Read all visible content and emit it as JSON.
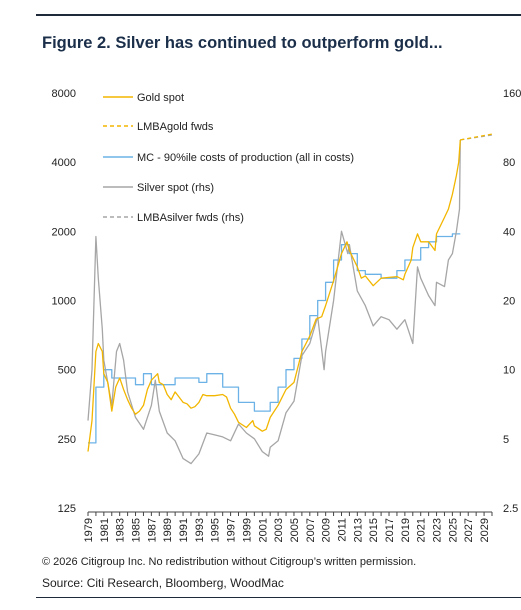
{
  "title": "Figure 2. Silver has continued to outperform gold...",
  "footer": {
    "copyright": "© 2026 Citigroup Inc. No redistribution without Citigroup’s written permission.",
    "source": "Source: Citi Research, Bloomberg, WoodMac"
  },
  "colors": {
    "gold": "#f2b600",
    "mc": "#6cb2e6",
    "silver": "#a6a6a6",
    "title": "#1b2f4a"
  },
  "chart_data": {
    "type": "line",
    "y_left": {
      "scale": "log",
      "ylim": [
        125,
        8000
      ],
      "ticks": [
        125,
        250,
        500,
        1000,
        2000,
        4000,
        8000
      ],
      "tick_labels": [
        "125",
        "250",
        "500",
        "1000",
        "2000",
        "4000",
        "8000"
      ]
    },
    "y_right": {
      "scale": "log",
      "ylim": [
        2.5,
        160
      ],
      "ticks": [
        2.5,
        5,
        10,
        20,
        40,
        80,
        160
      ],
      "tick_labels": [
        "2.5",
        "5",
        "10",
        "20",
        "40",
        "80",
        "160"
      ]
    },
    "x_ticks": [
      "1979",
      "1981",
      "1983",
      "1985",
      "1987",
      "1989",
      "1991",
      "1993",
      "1995",
      "1997",
      "1999",
      "2001",
      "2003",
      "2005",
      "2007",
      "2009",
      "2011",
      "2013",
      "2015",
      "2017",
      "2019",
      "2021",
      "2023",
      "2025",
      "2027",
      "2029"
    ],
    "xlim": [
      1979,
      2030
    ],
    "legend": [
      "Gold spot",
      "LMBAgold fwds",
      "MC - 90%ile costs of production (all in costs)",
      "Silver spot (rhs)",
      "LMBAsilver fwds (rhs)"
    ],
    "series": [
      {
        "name": "Gold spot",
        "axis": "left",
        "style": "solid",
        "color": "#f2b600",
        "points": [
          [
            1979,
            220
          ],
          [
            1979.5,
            300
          ],
          [
            1980,
            600
          ],
          [
            1980.3,
            650
          ],
          [
            1980.8,
            600
          ],
          [
            1981,
            480
          ],
          [
            1981.5,
            440
          ],
          [
            1982,
            330
          ],
          [
            1982.5,
            420
          ],
          [
            1983,
            460
          ],
          [
            1983.5,
            410
          ],
          [
            1984,
            370
          ],
          [
            1984.5,
            340
          ],
          [
            1985,
            320
          ],
          [
            1985.5,
            330
          ],
          [
            1986,
            350
          ],
          [
            1986.5,
            410
          ],
          [
            1987,
            450
          ],
          [
            1987.8,
            480
          ],
          [
            1988,
            440
          ],
          [
            1988.5,
            430
          ],
          [
            1989,
            390
          ],
          [
            1989.5,
            370
          ],
          [
            1990,
            400
          ],
          [
            1990.5,
            380
          ],
          [
            1991,
            360
          ],
          [
            1991.5,
            355
          ],
          [
            1992,
            340
          ],
          [
            1992.5,
            345
          ],
          [
            1993,
            360
          ],
          [
            1993.5,
            390
          ],
          [
            1994,
            385
          ],
          [
            1995,
            385
          ],
          [
            1996,
            390
          ],
          [
            1996.5,
            380
          ],
          [
            1997,
            340
          ],
          [
            1997.5,
            320
          ],
          [
            1998,
            295
          ],
          [
            1999,
            280
          ],
          [
            1999.8,
            300
          ],
          [
            2000,
            285
          ],
          [
            2001,
            270
          ],
          [
            2001.5,
            275
          ],
          [
            2002,
            310
          ],
          [
            2003,
            350
          ],
          [
            2004,
            410
          ],
          [
            2005,
            440
          ],
          [
            2006,
            600
          ],
          [
            2007,
            700
          ],
          [
            2007.8,
            830
          ],
          [
            2008.5,
            850
          ],
          [
            2009,
            950
          ],
          [
            2010,
            1220
          ],
          [
            2011,
            1600
          ],
          [
            2011.7,
            1800
          ],
          [
            2012,
            1650
          ],
          [
            2013,
            1400
          ],
          [
            2013.5,
            1250
          ],
          [
            2014,
            1280
          ],
          [
            2015,
            1160
          ],
          [
            2016,
            1250
          ],
          [
            2017,
            1260
          ],
          [
            2018,
            1270
          ],
          [
            2018.8,
            1230
          ],
          [
            2019,
            1300
          ],
          [
            2019.8,
            1500
          ],
          [
            2020,
            1700
          ],
          [
            2020.6,
            1950
          ],
          [
            2021,
            1800
          ],
          [
            2022,
            1800
          ],
          [
            2022.8,
            1650
          ],
          [
            2023,
            1950
          ],
          [
            2024,
            2300
          ],
          [
            2024.5,
            2500
          ],
          [
            2025,
            2900
          ],
          [
            2025.5,
            3500
          ],
          [
            2025.8,
            4000
          ],
          [
            2026,
            5000
          ]
        ]
      },
      {
        "name": "LMBAgold fwds",
        "axis": "left",
        "style": "dashed",
        "color": "#f2b600",
        "points": [
          [
            2026,
            5000
          ],
          [
            2030,
            5300
          ]
        ]
      },
      {
        "name": "MC - 90%ile costs of production (all in costs)",
        "axis": "left",
        "style": "step",
        "color": "#6cb2e6",
        "points": [
          [
            1979,
            240
          ],
          [
            1980,
            240
          ],
          [
            1980,
            420
          ],
          [
            1981,
            420
          ],
          [
            1981,
            500
          ],
          [
            1982,
            500
          ],
          [
            1982,
            460
          ],
          [
            1985,
            460
          ],
          [
            1985,
            430
          ],
          [
            1986,
            430
          ],
          [
            1986,
            480
          ],
          [
            1987,
            480
          ],
          [
            1987,
            430
          ],
          [
            1990,
            430
          ],
          [
            1990,
            460
          ],
          [
            1993,
            460
          ],
          [
            1993,
            440
          ],
          [
            1994,
            440
          ],
          [
            1994,
            480
          ],
          [
            1996,
            480
          ],
          [
            1996,
            420
          ],
          [
            1998,
            420
          ],
          [
            1998,
            360
          ],
          [
            2000,
            360
          ],
          [
            2000,
            330
          ],
          [
            2002,
            330
          ],
          [
            2002,
            360
          ],
          [
            2003,
            360
          ],
          [
            2003,
            420
          ],
          [
            2004,
            420
          ],
          [
            2004,
            500
          ],
          [
            2005,
            500
          ],
          [
            2005,
            560
          ],
          [
            2006,
            560
          ],
          [
            2006,
            680
          ],
          [
            2007,
            680
          ],
          [
            2007,
            860
          ],
          [
            2008,
            860
          ],
          [
            2008,
            1000
          ],
          [
            2009,
            1000
          ],
          [
            2009,
            1200
          ],
          [
            2010,
            1200
          ],
          [
            2010,
            1500
          ],
          [
            2011,
            1500
          ],
          [
            2011,
            1750
          ],
          [
            2012,
            1750
          ],
          [
            2012,
            1600
          ],
          [
            2013,
            1600
          ],
          [
            2013,
            1350
          ],
          [
            2014,
            1350
          ],
          [
            2014,
            1300
          ],
          [
            2016,
            1300
          ],
          [
            2016,
            1250
          ],
          [
            2018,
            1250
          ],
          [
            2018,
            1350
          ],
          [
            2019,
            1350
          ],
          [
            2019,
            1500
          ],
          [
            2021,
            1500
          ],
          [
            2021,
            1700
          ],
          [
            2022,
            1700
          ],
          [
            2022,
            1800
          ],
          [
            2023,
            1800
          ],
          [
            2023,
            1900
          ],
          [
            2025,
            1900
          ],
          [
            2025,
            1950
          ],
          [
            2026,
            1950
          ]
        ]
      },
      {
        "name": "Silver spot (rhs)",
        "axis": "right",
        "style": "solid",
        "color": "#a6a6a6",
        "points": [
          [
            1979,
            6
          ],
          [
            1979.5,
            10
          ],
          [
            1980,
            38
          ],
          [
            1980.3,
            25
          ],
          [
            1980.8,
            15
          ],
          [
            1981,
            11
          ],
          [
            1982,
            7
          ],
          [
            1982.6,
            12
          ],
          [
            1983,
            13
          ],
          [
            1983.5,
            11
          ],
          [
            1984,
            8
          ],
          [
            1985,
            6.2
          ],
          [
            1986,
            5.5
          ],
          [
            1987,
            7
          ],
          [
            1987.5,
            9
          ],
          [
            1988,
            6.6
          ],
          [
            1989,
            5.3
          ],
          [
            1990,
            4.9
          ],
          [
            1991,
            4.1
          ],
          [
            1992,
            3.9
          ],
          [
            1993,
            4.3
          ],
          [
            1994,
            5.3
          ],
          [
            1995,
            5.2
          ],
          [
            1996,
            5.1
          ],
          [
            1997,
            4.9
          ],
          [
            1998,
            5.8
          ],
          [
            1999,
            5.3
          ],
          [
            2000,
            5.0
          ],
          [
            2001,
            4.4
          ],
          [
            2001.8,
            4.2
          ],
          [
            2002,
            4.6
          ],
          [
            2003,
            4.9
          ],
          [
            2004,
            6.5
          ],
          [
            2005,
            7.3
          ],
          [
            2006,
            11.5
          ],
          [
            2007,
            13
          ],
          [
            2008,
            17
          ],
          [
            2008.8,
            10
          ],
          [
            2009,
            12
          ],
          [
            2010,
            20
          ],
          [
            2011,
            40
          ],
          [
            2011.8,
            32
          ],
          [
            2012,
            35
          ],
          [
            2013,
            22
          ],
          [
            2014,
            19
          ],
          [
            2015,
            15.5
          ],
          [
            2016,
            17
          ],
          [
            2017,
            16.5
          ],
          [
            2018,
            15
          ],
          [
            2019,
            16.5
          ],
          [
            2020,
            13
          ],
          [
            2020.6,
            28
          ],
          [
            2021,
            25
          ],
          [
            2022,
            21
          ],
          [
            2022.8,
            19
          ],
          [
            2023,
            24
          ],
          [
            2024,
            23
          ],
          [
            2024.5,
            30
          ],
          [
            2025,
            32
          ],
          [
            2025.5,
            40
          ],
          [
            2025.9,
            50
          ],
          [
            2026,
            100
          ]
        ]
      },
      {
        "name": "LMBAsilver fwds (rhs)",
        "axis": "right",
        "style": "dashed",
        "color": "#a6a6a6",
        "points": [
          [
            2026,
            100
          ],
          [
            2030,
            105
          ]
        ]
      }
    ]
  }
}
